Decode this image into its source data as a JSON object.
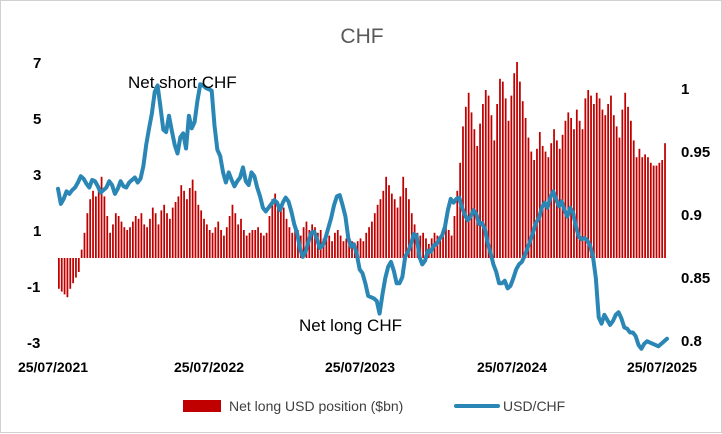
{
  "chart_data": {
    "type": "bar+line",
    "title": "CHF",
    "x_tick_labels": [
      "25/07/2021",
      "25/07/2022",
      "25/07/2023",
      "25/07/2024",
      "25/07/2025"
    ],
    "left_axis": {
      "ticks": [
        "7",
        "5",
        "3",
        "1",
        "-1",
        "-3"
      ],
      "range": [
        -3,
        7
      ]
    },
    "right_axis": {
      "ticks": [
        "1",
        "0.95",
        "0.9",
        "0.85",
        "0.8"
      ],
      "range": [
        0.8,
        1.0
      ]
    },
    "annotations": {
      "net_short": "Net short CHF",
      "net_long": "Net long CHF"
    },
    "grid": false,
    "legend_position": "bottom",
    "series": [
      {
        "name": "Net long USD position ($bn)",
        "kind": "bar",
        "axis": "left",
        "color": "#c00000",
        "values": [
          -1.1,
          -1.2,
          -1.3,
          -1.4,
          -1.1,
          -0.9,
          -0.7,
          -0.5,
          0.3,
          0.9,
          1.6,
          2.1,
          2.4,
          2.2,
          2.5,
          2.9,
          2.2,
          1.5,
          0.9,
          1.2,
          1.6,
          1.5,
          1.3,
          1.1,
          1.0,
          1.1,
          1.3,
          1.5,
          1.4,
          1.6,
          1.2,
          1.1,
          1.4,
          1.8,
          1.6,
          1.2,
          1.7,
          1.9,
          1.6,
          1.4,
          1.8,
          2.0,
          2.2,
          2.6,
          2.4,
          2.1,
          2.5,
          2.8,
          2.4,
          1.9,
          1.7,
          1.4,
          1.2,
          1.0,
          0.9,
          1.1,
          1.3,
          1.0,
          0.8,
          1.1,
          1.5,
          1.9,
          1.6,
          1.2,
          1.4,
          1.0,
          0.8,
          0.9,
          1.0,
          1.0,
          1.1,
          0.9,
          0.8,
          0.9,
          1.5,
          2.1,
          2.3,
          1.9,
          1.7,
          1.8,
          1.4,
          1.1,
          0.9,
          1.2,
          1.0,
          0.8,
          1.1,
          1.3,
          1.0,
          1.2,
          1.1,
          0.9,
          1.0,
          0.7,
          0.9,
          0.8,
          0.6,
          0.9,
          1.0,
          0.8,
          0.6,
          0.7,
          0.8,
          0.6,
          0.5,
          0.6,
          0.7,
          0.6,
          0.9,
          1.1,
          1.3,
          1.6,
          1.9,
          2.1,
          2.4,
          2.9,
          2.6,
          2.3,
          2.1,
          1.8,
          2.2,
          2.9,
          2.5,
          2.1,
          1.6,
          1.2,
          0.9,
          0.8,
          0.9,
          0.7,
          0.5,
          0.7,
          0.9,
          0.8,
          0.7,
          0.9,
          1.1,
          1.0,
          0.8,
          1.5,
          2.4,
          3.4,
          4.7,
          5.4,
          5.9,
          5.2,
          4.6,
          4.0,
          4.8,
          5.5,
          6.0,
          5.8,
          5.1,
          4.2,
          5.5,
          6.4,
          6.3,
          5.7,
          4.9,
          5.8,
          6.6,
          7.0,
          6.3,
          5.6,
          5.0,
          4.3,
          3.8,
          3.5,
          3.9,
          4.5,
          4.0,
          3.8,
          3.6,
          4.1,
          4.6,
          4.2,
          3.9,
          4.4,
          4.9,
          5.2,
          5.0,
          4.6,
          5.3,
          4.9,
          4.6,
          5.7,
          6.0,
          5.8,
          5.5,
          5.9,
          5.7,
          5.3,
          5.1,
          5.5,
          5.8,
          5.1,
          4.7,
          4.3,
          5.3,
          5.9,
          5.4,
          4.9,
          4.2,
          3.6,
          3.9,
          3.6,
          3.7,
          3.6,
          3.4,
          3.3,
          3.3,
          3.4,
          3.5,
          4.1
        ]
      },
      {
        "name": "USD/CHF",
        "kind": "line",
        "axis": "right",
        "color": "#2a86b5",
        "values": [
          0.92,
          0.908,
          0.912,
          0.918,
          0.916,
          0.919,
          0.921,
          0.925,
          0.93,
          0.928,
          0.924,
          0.921,
          0.927,
          0.926,
          0.922,
          0.917,
          0.919,
          0.921,
          0.926,
          0.923,
          0.916,
          0.92,
          0.926,
          0.922,
          0.921,
          0.925,
          0.927,
          0.929,
          0.925,
          0.928,
          0.938,
          0.955,
          0.968,
          0.98,
          0.997,
          1.002,
          0.985,
          0.967,
          0.965,
          0.978,
          0.966,
          0.955,
          0.948,
          0.961,
          0.964,
          0.952,
          0.978,
          0.968,
          0.973,
          0.99,
          1.003,
          1.002,
          1.0,
          0.999,
          0.998,
          0.97,
          0.951,
          0.946,
          0.933,
          0.925,
          0.933,
          0.927,
          0.922,
          0.926,
          0.929,
          0.937,
          0.926,
          0.923,
          0.933,
          0.93,
          0.921,
          0.914,
          0.905,
          0.902,
          0.905,
          0.908,
          0.911,
          0.909,
          0.903,
          0.909,
          0.913,
          0.91,
          0.902,
          0.892,
          0.885,
          0.873,
          0.866,
          0.87,
          0.878,
          0.885,
          0.886,
          0.88,
          0.873,
          0.875,
          0.881,
          0.889,
          0.897,
          0.907,
          0.914,
          0.915,
          0.907,
          0.898,
          0.881,
          0.874,
          0.876,
          0.868,
          0.856,
          0.853,
          0.845,
          0.835,
          0.834,
          0.833,
          0.831,
          0.821,
          0.836,
          0.849,
          0.858,
          0.862,
          0.855,
          0.845,
          0.845,
          0.85,
          0.866,
          0.87,
          0.876,
          0.884,
          0.883,
          0.866,
          0.86,
          0.863,
          0.871,
          0.87,
          0.875,
          0.876,
          0.88,
          0.883,
          0.89,
          0.903,
          0.912,
          0.909,
          0.912,
          0.913,
          0.905,
          0.899,
          0.895,
          0.898,
          0.903,
          0.9,
          0.892,
          0.893,
          0.888,
          0.877,
          0.869,
          0.86,
          0.854,
          0.845,
          0.845,
          0.847,
          0.841,
          0.843,
          0.849,
          0.856,
          0.86,
          0.862,
          0.867,
          0.873,
          0.879,
          0.886,
          0.893,
          0.897,
          0.905,
          0.909,
          0.905,
          0.913,
          0.918,
          0.912,
          0.906,
          0.91,
          0.903,
          0.898,
          0.905,
          0.901,
          0.89,
          0.882,
          0.88,
          0.881,
          0.879,
          0.875,
          0.866,
          0.849,
          0.818,
          0.813,
          0.82,
          0.816,
          0.812,
          0.815,
          0.82,
          0.822,
          0.817,
          0.81,
          0.809,
          0.806,
          0.806,
          0.803,
          0.796,
          0.793,
          0.797,
          0.799,
          0.798,
          0.797,
          0.796,
          0.795,
          0.797,
          0.799,
          0.801
        ]
      }
    ]
  }
}
